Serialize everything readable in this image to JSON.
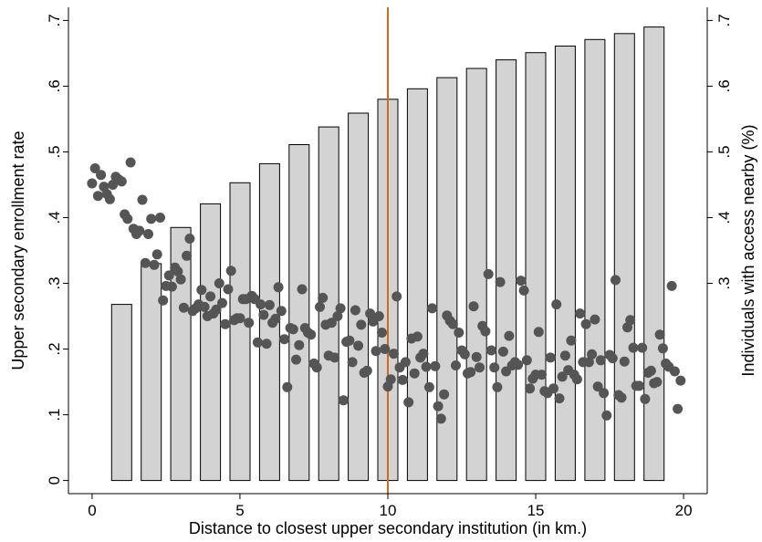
{
  "chart_data": {
    "type": "bar+scatter",
    "xlabel": "Distance to closest upper secondary institution (in km.)",
    "ylabel_left": "Upper secondary enrollment rate",
    "ylabel_right": "Individuals with access nearby (%)",
    "xlim": [
      -0.8,
      20.8
    ],
    "ylim": [
      -0.02,
      0.72
    ],
    "x_ticks": [
      0,
      5,
      10,
      15,
      20
    ],
    "x_tick_labels": [
      "0",
      "5",
      "10",
      "15",
      "20"
    ],
    "y_left_ticks": [
      0,
      0.1,
      0.2,
      0.3,
      0.4,
      0.5,
      0.6,
      0.7
    ],
    "y_left_tick_labels": [
      "0",
      ".1",
      ".2",
      ".3",
      ".4",
      ".5",
      ".6",
      ".7"
    ],
    "y_right_ticks": [
      0.3,
      0.4,
      0.5,
      0.6,
      0.7
    ],
    "y_right_tick_labels": [
      ".3",
      ".4",
      ".5",
      ".6",
      ".7"
    ],
    "grid": false,
    "reference_line": {
      "x": 10,
      "color": "#d2691e"
    },
    "colors": {
      "bar_fill": "#d3d3d3",
      "bar_stroke": "#000000",
      "dot": "#555555"
    },
    "bars": {
      "x": [
        1,
        2,
        3,
        4,
        5,
        6,
        7,
        8,
        9,
        10,
        11,
        12,
        13,
        14,
        15,
        16,
        17,
        18,
        19
      ],
      "values": [
        0.268,
        0.33,
        0.385,
        0.421,
        0.453,
        0.482,
        0.511,
        0.538,
        0.559,
        0.58,
        0.596,
        0.613,
        0.627,
        0.64,
        0.651,
        0.661,
        0.671,
        0.68,
        0.69
      ]
    },
    "scatter": {
      "x": [
        0.0,
        0.1,
        0.2,
        0.3,
        0.4,
        0.5,
        0.6,
        0.7,
        0.8,
        0.9,
        1.0,
        1.1,
        1.2,
        1.3,
        1.4,
        1.5,
        1.6,
        1.7,
        1.8,
        1.9,
        2.0,
        2.1,
        2.2,
        2.3,
        2.4,
        2.5,
        2.6,
        2.7,
        2.8,
        2.9,
        3.0,
        3.1,
        3.2,
        3.3,
        3.4,
        3.5,
        3.6,
        3.7,
        3.8,
        3.9,
        4.0,
        4.1,
        4.2,
        4.3,
        4.4,
        4.5,
        4.6,
        4.7,
        4.8,
        4.9,
        5.0,
        5.1,
        5.2,
        5.3,
        5.4,
        5.5,
        5.6,
        5.7,
        5.8,
        5.9,
        6.0,
        6.1,
        6.2,
        6.3,
        6.4,
        6.5,
        6.6,
        6.7,
        6.8,
        6.9,
        7.0,
        7.1,
        7.2,
        7.3,
        7.4,
        7.5,
        7.6,
        7.7,
        7.8,
        7.9,
        8.0,
        8.1,
        8.2,
        8.3,
        8.4,
        8.5,
        8.6,
        8.7,
        8.8,
        8.9,
        9.0,
        9.1,
        9.2,
        9.3,
        9.4,
        9.5,
        9.6,
        9.7,
        9.8,
        9.9,
        10.0,
        10.1,
        10.2,
        10.3,
        10.4,
        10.5,
        10.6,
        10.7,
        10.8,
        10.9,
        11.0,
        11.1,
        11.2,
        11.3,
        11.4,
        11.5,
        11.6,
        11.7,
        11.8,
        11.9,
        12.0,
        12.1,
        12.2,
        12.3,
        12.4,
        12.5,
        12.6,
        12.7,
        12.8,
        12.9,
        13.0,
        13.1,
        13.2,
        13.3,
        13.4,
        13.5,
        13.6,
        13.7,
        13.8,
        13.9,
        14.0,
        14.1,
        14.2,
        14.3,
        14.4,
        14.5,
        14.6,
        14.7,
        14.8,
        14.9,
        15.0,
        15.1,
        15.2,
        15.3,
        15.4,
        15.5,
        15.6,
        15.7,
        15.8,
        15.9,
        16.0,
        16.1,
        16.2,
        16.3,
        16.4,
        16.5,
        16.6,
        16.7,
        16.8,
        16.9,
        17.0,
        17.1,
        17.2,
        17.3,
        17.4,
        17.5,
        17.6,
        17.7,
        17.8,
        17.9,
        18.0,
        18.1,
        18.2,
        18.3,
        18.4,
        18.5,
        18.6,
        18.7,
        18.8,
        18.9,
        19.0,
        19.1,
        19.2,
        19.3,
        19.4,
        19.5,
        19.6,
        19.7,
        19.8,
        19.9
      ],
      "y": [
        0.452,
        0.475,
        0.433,
        0.465,
        0.447,
        0.436,
        0.428,
        0.45,
        0.462,
        0.458,
        0.455,
        0.405,
        0.398,
        0.484,
        0.383,
        0.375,
        0.38,
        0.427,
        0.331,
        0.375,
        0.398,
        0.328,
        0.344,
        0.4,
        0.274,
        0.296,
        0.312,
        0.295,
        0.324,
        0.318,
        0.306,
        0.263,
        0.342,
        0.368,
        0.258,
        0.262,
        0.268,
        0.29,
        0.264,
        0.25,
        0.28,
        0.254,
        0.26,
        0.3,
        0.27,
        0.238,
        0.291,
        0.319,
        0.244,
        0.247,
        0.247,
        0.276,
        0.276,
        0.24,
        0.281,
        0.276,
        0.21,
        0.268,
        0.252,
        0.208,
        0.267,
        0.24,
        0.246,
        0.294,
        0.258,
        0.215,
        0.142,
        0.232,
        0.23,
        0.184,
        0.206,
        0.291,
        0.232,
        0.225,
        0.222,
        0.178,
        0.172,
        0.264,
        0.278,
        0.237,
        0.19,
        0.24,
        0.187,
        0.25,
        0.262,
        0.122,
        0.211,
        0.213,
        0.18,
        0.259,
        0.205,
        0.237,
        0.164,
        0.167,
        0.254,
        0.242,
        0.197,
        0.25,
        0.225,
        0.2,
        0.143,
        0.154,
        0.193,
        0.28,
        0.172,
        0.153,
        0.18,
        0.119,
        0.216,
        0.163,
        0.219,
        0.187,
        0.193,
        0.173,
        0.142,
        0.262,
        0.174,
        0.113,
        0.094,
        0.131,
        0.251,
        0.243,
        0.238,
        0.175,
        0.225,
        0.198,
        0.192,
        0.163,
        0.165,
        0.265,
        0.188,
        0.172,
        0.235,
        0.227,
        0.314,
        0.198,
        0.172,
        0.142,
        0.302,
        0.196,
        0.166,
        0.22,
        0.175,
        0.18,
        0.176,
        0.304,
        0.289,
        0.183,
        0.14,
        0.155,
        0.161,
        0.226,
        0.161,
        0.136,
        0.133,
        0.187,
        0.14,
        0.268,
        0.125,
        0.158,
        0.19,
        0.168,
        0.213,
        0.161,
        0.154,
        0.254,
        0.18,
        0.238,
        0.18,
        0.192,
        0.245,
        0.143,
        0.183,
        0.133,
        0.099,
        0.191,
        0.186,
        0.305,
        0.13,
        0.126,
        0.181,
        0.233,
        0.244,
        0.202,
        0.144,
        0.144,
        0.202,
        0.124,
        0.164,
        0.167,
        0.148,
        0.15,
        0.222,
        0.201,
        0.178,
        0.173,
        0.296,
        0.166,
        0.109,
        0.152
      ]
    }
  }
}
